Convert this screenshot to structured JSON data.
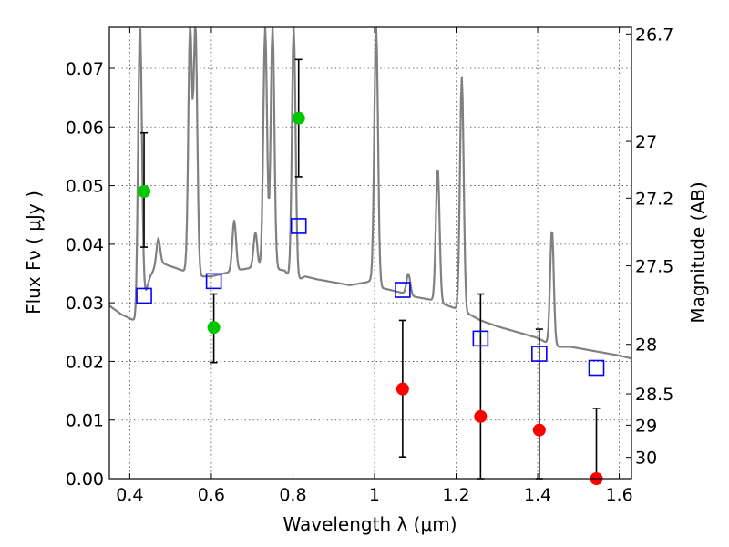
{
  "chart_data": {
    "type": "scatter",
    "title": "",
    "xlabel": "Wavelength  λ (μm)",
    "ylabel": "Flux  Fν  ( μJy )",
    "y2label": "Magnitude (AB)",
    "xlim": [
      0.35,
      1.63
    ],
    "ylim": [
      0.0,
      0.077
    ],
    "grid": true,
    "x_ticks": [
      0.4,
      0.6,
      0.8,
      1.0,
      1.2,
      1.4,
      1.6
    ],
    "x_tick_labels": [
      "0.4",
      "0.6",
      "0.8",
      "1",
      "1.2",
      "1.4",
      "1.6"
    ],
    "y_ticks": [
      0.0,
      0.01,
      0.02,
      0.03,
      0.04,
      0.05,
      0.06,
      0.07
    ],
    "y_tick_labels": [
      "0.00",
      "0.01",
      "0.02",
      "0.03",
      "0.04",
      "0.05",
      "0.06",
      "0.07"
    ],
    "y2_ticks": [
      "26.7",
      "27",
      "27.2",
      "27.5",
      "28",
      "28.5",
      "29",
      "30"
    ],
    "colors": {
      "spectrum": "#808080",
      "detection": "#00c800",
      "upper_limit": "#ff0000",
      "model": "#0000ff",
      "errorbar": "#000000"
    },
    "series": [
      {
        "marker": "circle",
        "color": "#00c800",
        "points": [
          {
            "x": 0.435,
            "y": 0.049,
            "yerr_low": 0.0395,
            "yerr_high": 0.059
          },
          {
            "x": 0.606,
            "y": 0.0258,
            "yerr_low": 0.0198,
            "yerr_high": 0.0315
          },
          {
            "x": 0.814,
            "y": 0.0615,
            "yerr_low": 0.0515,
            "yerr_high": 0.0715
          }
        ]
      },
      {
        "marker": "circle",
        "color": "#ff0000",
        "points": [
          {
            "x": 1.069,
            "y": 0.0153,
            "yerr_low": 0.0037,
            "yerr_high": 0.027
          },
          {
            "x": 1.26,
            "y": 0.0106,
            "yerr_low": 0.0,
            "yerr_high": 0.0315
          },
          {
            "x": 1.404,
            "y": 0.0083,
            "yerr_low": 0.0,
            "yerr_high": 0.0255
          },
          {
            "x": 1.544,
            "y": 0.0,
            "yerr_low": 0.0,
            "yerr_high": 0.012
          }
        ]
      },
      {
        "marker": "square",
        "color": "#0000ff",
        "points": [
          {
            "x": 0.435,
            "y": 0.0312
          },
          {
            "x": 0.606,
            "y": 0.0337
          },
          {
            "x": 0.814,
            "y": 0.0431
          },
          {
            "x": 1.069,
            "y": 0.0322
          },
          {
            "x": 1.26,
            "y": 0.0239
          },
          {
            "x": 1.404,
            "y": 0.0213
          },
          {
            "x": 1.544,
            "y": 0.0189
          }
        ]
      }
    ],
    "spectrum": {
      "color": "#808080",
      "x": [
        0.35,
        0.38,
        0.41,
        0.425,
        0.43,
        0.44,
        0.45,
        0.47,
        0.49,
        0.51,
        0.53,
        0.55,
        0.57,
        0.6,
        0.63,
        0.66,
        0.7,
        0.74,
        0.78,
        0.8,
        0.83,
        0.86,
        0.9,
        0.94,
        0.98,
        1.0,
        1.02,
        1.05,
        1.08,
        1.1,
        1.14,
        1.18,
        1.22,
        1.26,
        1.3,
        1.35,
        1.4,
        1.44,
        1.48,
        1.52,
        1.56,
        1.6,
        1.63
      ],
      "y": [
        0.0295,
        0.028,
        0.027,
        0.0265,
        0.031,
        0.032,
        0.0345,
        0.037,
        0.0365,
        0.036,
        0.0355,
        0.035,
        0.0345,
        0.0345,
        0.035,
        0.0355,
        0.036,
        0.036,
        0.0355,
        0.0335,
        0.0345,
        0.034,
        0.0335,
        0.033,
        0.0335,
        0.034,
        0.0325,
        0.032,
        0.0315,
        0.031,
        0.0305,
        0.0295,
        0.0285,
        0.027,
        0.026,
        0.025,
        0.024,
        0.0225,
        0.0225,
        0.022,
        0.0215,
        0.021,
        0.0205
      ]
    },
    "emission_lines": [
      {
        "x": 0.425,
        "peak": 0.077
      },
      {
        "x": 0.47,
        "peak": 0.041
      },
      {
        "x": 0.548,
        "peak": 0.077
      },
      {
        "x": 0.561,
        "peak": 0.077
      },
      {
        "x": 0.656,
        "peak": 0.044
      },
      {
        "x": 0.708,
        "peak": 0.042
      },
      {
        "x": 0.732,
        "peak": 0.077
      },
      {
        "x": 0.75,
        "peak": 0.077
      },
      {
        "x": 0.802,
        "peak": 0.077
      },
      {
        "x": 1.004,
        "peak": 0.077
      },
      {
        "x": 1.083,
        "peak": 0.035
      },
      {
        "x": 1.155,
        "peak": 0.053
      },
      {
        "x": 1.214,
        "peak": 0.0685
      },
      {
        "x": 1.435,
        "peak": 0.0425
      }
    ]
  }
}
